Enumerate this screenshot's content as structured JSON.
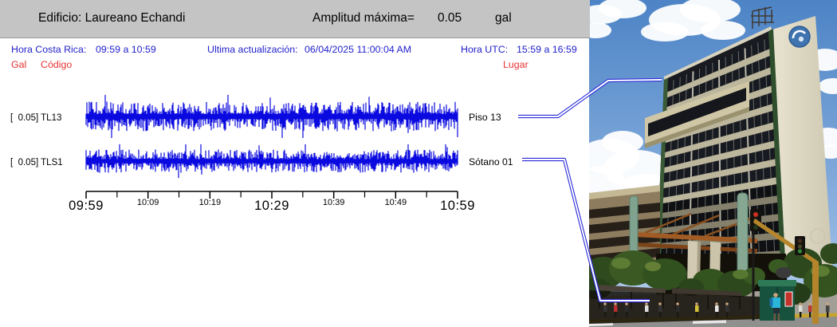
{
  "header": {
    "title": "Edificio: Laureano Echandi",
    "amplitude_label": "Amplitud máxima=",
    "amplitude_value": "0.05",
    "amplitude_unit": "gal"
  },
  "info_bar": {
    "local_time_label": "Hora Costa Rica:",
    "local_time_value": "09:59 a 10:59",
    "last_update_label": "Ultima actualización:",
    "last_update_value": "06/04/2025 11:00:04 AM",
    "utc_time_label": "Hora UTC:",
    "utc_time_value": "15:59 a 16:59"
  },
  "column_headers": {
    "gal": "Gal",
    "codigo": "Código",
    "lugar": "Lugar"
  },
  "colors": {
    "header_bg": "#c4c4c4",
    "accent_blue": "#2222cc",
    "accent_red": "#e83333",
    "trace_blue": "#0a0ae0",
    "leader_blue": "#2a2ad8"
  },
  "chart_data": {
    "type": "line",
    "title": "Edificio: Laureano Echandi",
    "subtitle": "Amplitud máxima= 0.05 gal",
    "x_axis": {
      "start": "09:59",
      "end": "10:59",
      "tick_labels": [
        "09:59",
        "10:09",
        "10:19",
        "10:29",
        "10:39",
        "10:49",
        "10:59"
      ],
      "major_labels": [
        "09:59",
        "10:29",
        "10:59"
      ],
      "tick_interval_min": 10,
      "minor_tick_interval_min": 5
    },
    "amplitude_max_gal": 0.05,
    "series": [
      {
        "scale_label": "[  0.05] TL13",
        "code": "TL13",
        "scale_gal": 0.05,
        "location": "Piso 13",
        "signal": "continuous noise trace",
        "relative_amplitude": 1.0
      },
      {
        "scale_label": "[  0.05] TLS1",
        "code": "TLS1",
        "scale_gal": 0.05,
        "location": "Sótano 01",
        "signal": "continuous noise trace",
        "relative_amplitude": 0.78
      }
    ],
    "legend_position": "left-scale-labels, right-location-labels",
    "grid": false
  },
  "photo": {
    "alt": "Photograph of the Laureano Echandi high-rise building with street scene"
  }
}
